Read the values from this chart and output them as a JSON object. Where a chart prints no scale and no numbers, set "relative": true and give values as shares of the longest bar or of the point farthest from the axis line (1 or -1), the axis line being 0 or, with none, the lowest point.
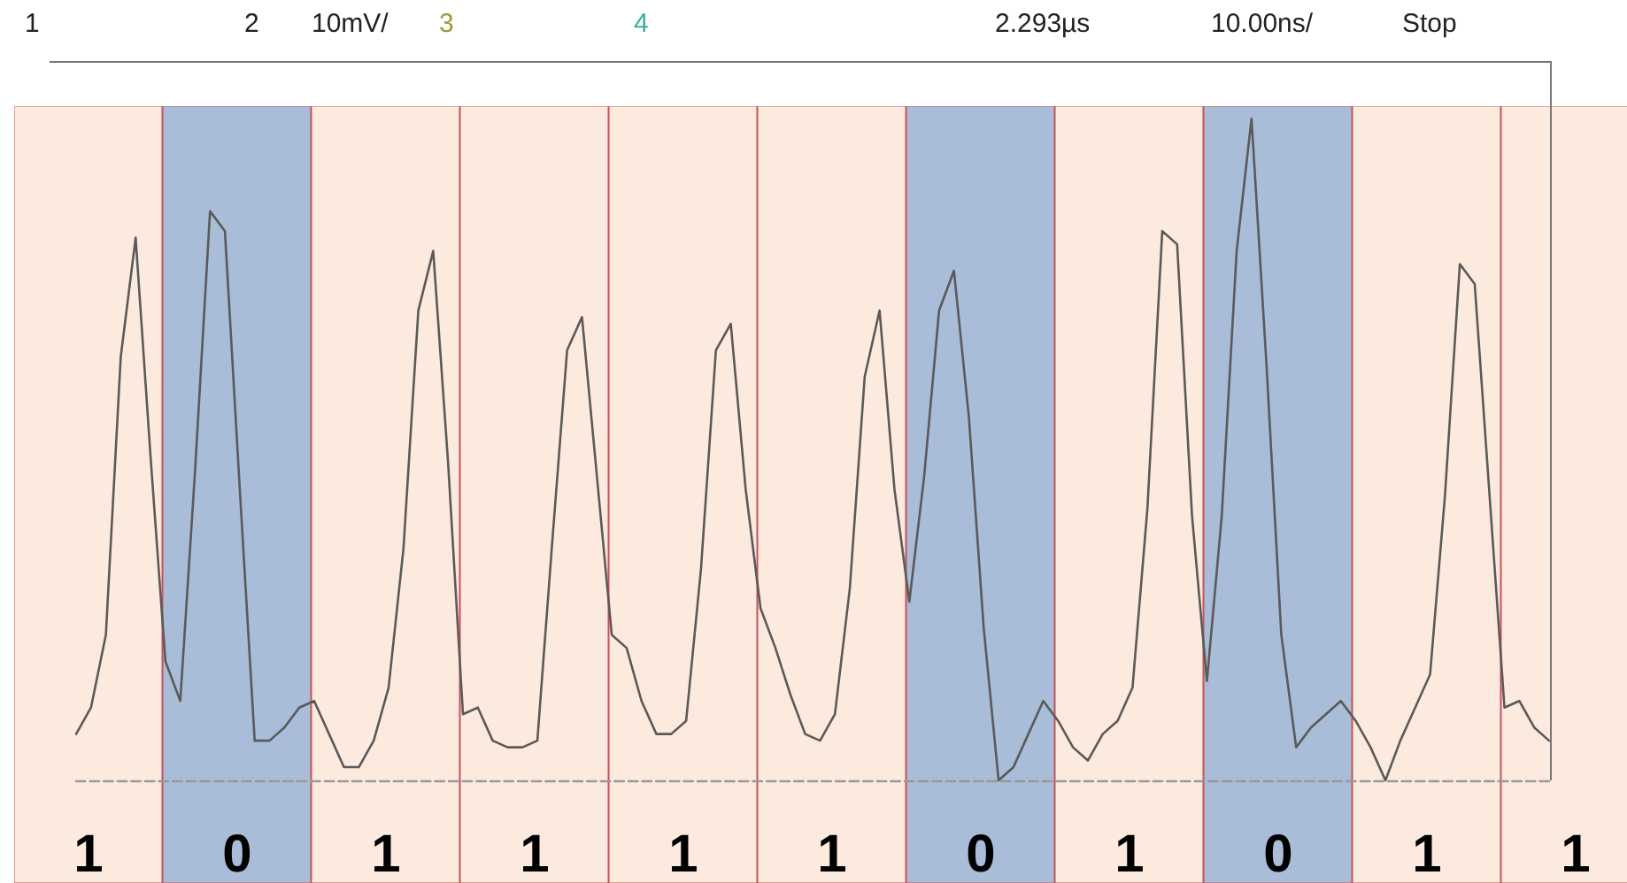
{
  "chart_data": [
    {
      "type": "line",
      "relative": true,
      "marker": "none",
      "line_style": "solid",
      "annotations": [
        "1",
        "2",
        "10mV/",
        "3",
        "4",
        "2.293µs",
        "10.00ns/",
        "Stop"
      ],
      "categories": [
        null,
        null,
        null,
        null,
        null,
        null,
        null,
        null,
        null,
        null,
        null,
        null,
        null,
        null,
        null,
        null,
        null,
        null,
        null,
        null,
        null,
        null,
        null,
        null,
        null,
        null,
        null,
        null,
        null,
        null,
        null,
        null,
        null,
        null,
        null,
        null,
        null,
        null,
        null,
        null,
        null,
        null,
        null,
        null,
        null,
        null,
        null,
        null,
        null,
        null,
        null,
        null,
        null,
        null,
        null,
        null,
        null,
        null,
        null,
        null,
        null,
        null,
        null,
        null,
        null,
        null,
        null,
        null,
        null,
        null,
        null,
        null,
        null,
        null,
        null,
        null,
        null,
        null,
        null,
        null,
        null,
        null,
        null,
        null,
        null,
        null,
        null,
        null,
        null,
        null,
        null,
        null,
        null,
        null,
        null,
        null,
        null,
        null,
        null,
        null
      ],
      "series": [
        {
          "color": "#5a5a5a",
          "values": [
            0.07,
            0.11,
            0.22,
            0.64,
            0.82,
            0.49,
            0.18,
            0.12,
            0.47,
            0.86,
            0.83,
            0.44,
            0.06,
            0.06,
            0.08,
            0.11,
            0.12,
            0.07,
            0.02,
            0.02,
            0.06,
            0.14,
            0.35,
            0.71,
            0.8,
            0.48,
            0.1,
            0.11,
            0.06,
            0.05,
            0.05,
            0.06,
            0.36,
            0.65,
            0.7,
            0.46,
            0.22,
            0.2,
            0.12,
            0.07,
            0.07,
            0.09,
            0.32,
            0.65,
            0.69,
            0.44,
            0.26,
            0.2,
            0.13,
            0.07,
            0.06,
            0.1,
            0.29,
            0.61,
            0.71,
            0.44,
            0.27,
            0.46,
            0.71,
            0.77,
            0.55,
            0.23,
            0.0,
            0.02,
            0.07,
            0.12,
            0.09,
            0.05,
            0.03,
            0.07,
            0.09,
            0.14,
            0.41,
            0.83,
            0.81,
            0.4,
            0.15,
            0.4,
            0.8,
            1.0,
            0.63,
            0.22,
            0.05,
            0.08,
            0.1,
            0.12,
            0.09,
            0.05,
            0.0,
            0.06,
            0.11,
            0.16,
            0.43,
            0.78,
            0.75,
            0.43,
            0.11,
            0.12,
            0.08,
            0.06
          ]
        }
      ]
    },
    {
      "type": "heatmap",
      "data_labels": true,
      "categories": [
        null,
        null,
        null,
        null,
        null,
        null,
        null,
        null,
        null,
        null,
        null
      ],
      "y_categories": [
        null
      ],
      "cells": [
        [
          1,
          0,
          1,
          1,
          1,
          1,
          0,
          1,
          0,
          1,
          1
        ]
      ]
    }
  ]
}
